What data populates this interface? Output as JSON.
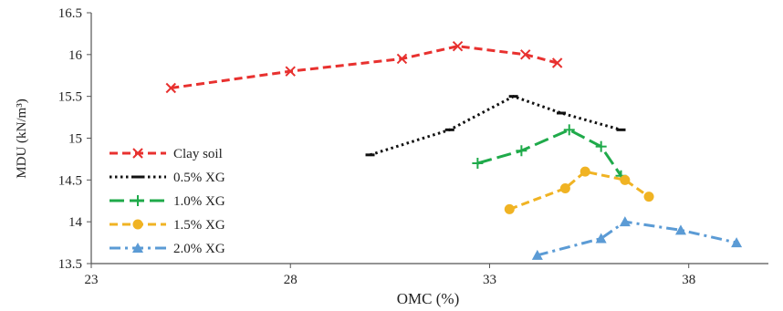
{
  "chart_data": {
    "type": "line",
    "xlabel": "OMC (%)",
    "ylabel": "MDU (kN/m³)",
    "xlim": [
      23,
      40
    ],
    "ylim": [
      13.5,
      16.5
    ],
    "xticks": [
      23,
      28,
      33,
      38
    ],
    "xtick_labels": [
      "23",
      "28",
      "33",
      "38"
    ],
    "yticks": [
      13.5,
      14,
      14.5,
      15,
      15.5,
      16,
      16.5
    ],
    "ytick_labels": [
      "13.5",
      "14",
      "14.5",
      "15",
      "15.5",
      "16",
      "16.5"
    ],
    "grid": false,
    "legend_position": "left",
    "series": [
      {
        "name": "Clay soil",
        "color": "#e8312f",
        "marker": "x",
        "dash": "dashed",
        "x": [
          25.0,
          28.0,
          30.8,
          32.2,
          33.9,
          34.7
        ],
        "y": [
          15.6,
          15.8,
          15.95,
          16.1,
          16.0,
          15.9
        ]
      },
      {
        "name": "0.5% XG",
        "color": "#111111",
        "marker": "dash",
        "dash": "dotted",
        "x": [
          30.0,
          32.0,
          33.6,
          34.8,
          36.3
        ],
        "y": [
          14.8,
          15.1,
          15.5,
          15.3,
          15.1
        ]
      },
      {
        "name": "1.0% XG",
        "color": "#1faa4a",
        "marker": "plus",
        "dash": "longdash",
        "x": [
          32.7,
          33.8,
          35.0,
          35.8,
          36.3
        ],
        "y": [
          14.7,
          14.85,
          15.1,
          14.9,
          14.55
        ]
      },
      {
        "name": "1.5% XG",
        "color": "#f0b323",
        "marker": "circle",
        "dash": "dashed",
        "x": [
          33.5,
          34.9,
          35.4,
          36.4,
          37.0
        ],
        "y": [
          14.15,
          14.4,
          14.6,
          14.5,
          14.3
        ]
      },
      {
        "name": "2.0% XG",
        "color": "#5b9bd5",
        "marker": "triangle",
        "dash": "dashdot",
        "x": [
          34.2,
          35.8,
          36.4,
          37.8,
          39.2
        ],
        "y": [
          13.6,
          13.8,
          14.0,
          13.9,
          13.75
        ]
      }
    ]
  }
}
